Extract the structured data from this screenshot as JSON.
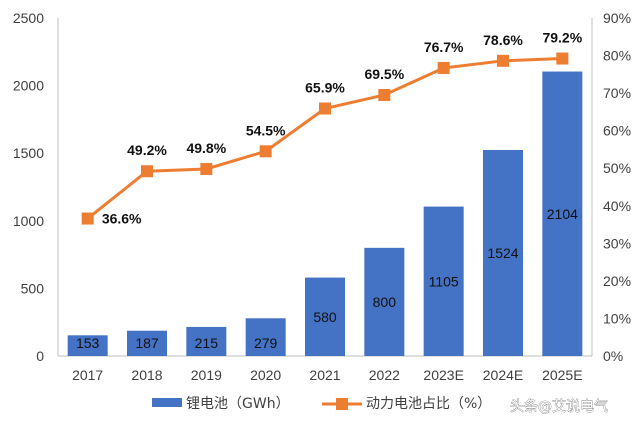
{
  "chart_data": {
    "type": "bar+line",
    "categories": [
      "2017",
      "2018",
      "2019",
      "2020",
      "2021",
      "2022",
      "2023E",
      "2024E",
      "2025E"
    ],
    "series": [
      {
        "name": "锂电池（GWh）",
        "type": "bar",
        "axis": "left",
        "color": "#4472c4",
        "values": [
          153,
          187,
          215,
          279,
          580,
          800,
          1105,
          1524,
          2104
        ],
        "labels": [
          "153",
          "187",
          "215",
          "279",
          "580",
          "800",
          "1105",
          "1524",
          "2104"
        ]
      },
      {
        "name": "动力电池占比（%）",
        "type": "line",
        "axis": "right",
        "color": "#ed7d31",
        "values": [
          36.6,
          49.2,
          49.8,
          54.5,
          65.9,
          69.5,
          76.7,
          78.6,
          79.2
        ],
        "labels": [
          "36.6%",
          "49.2%",
          "49.8%",
          "54.5%",
          "65.9%",
          "69.5%",
          "76.7%",
          "78.6%",
          "79.2%"
        ]
      }
    ],
    "y_left": {
      "range": [
        0,
        2500
      ],
      "ticks": [
        "0",
        "500",
        "1000",
        "1500",
        "2000",
        "2500"
      ]
    },
    "y_right": {
      "range": [
        0,
        90
      ],
      "ticks": [
        "0%",
        "10%",
        "20%",
        "30%",
        "40%",
        "50%",
        "60%",
        "70%",
        "80%",
        "90%"
      ]
    },
    "legend_position": "bottom",
    "grid": false
  },
  "watermark": "头条@艾说电气"
}
